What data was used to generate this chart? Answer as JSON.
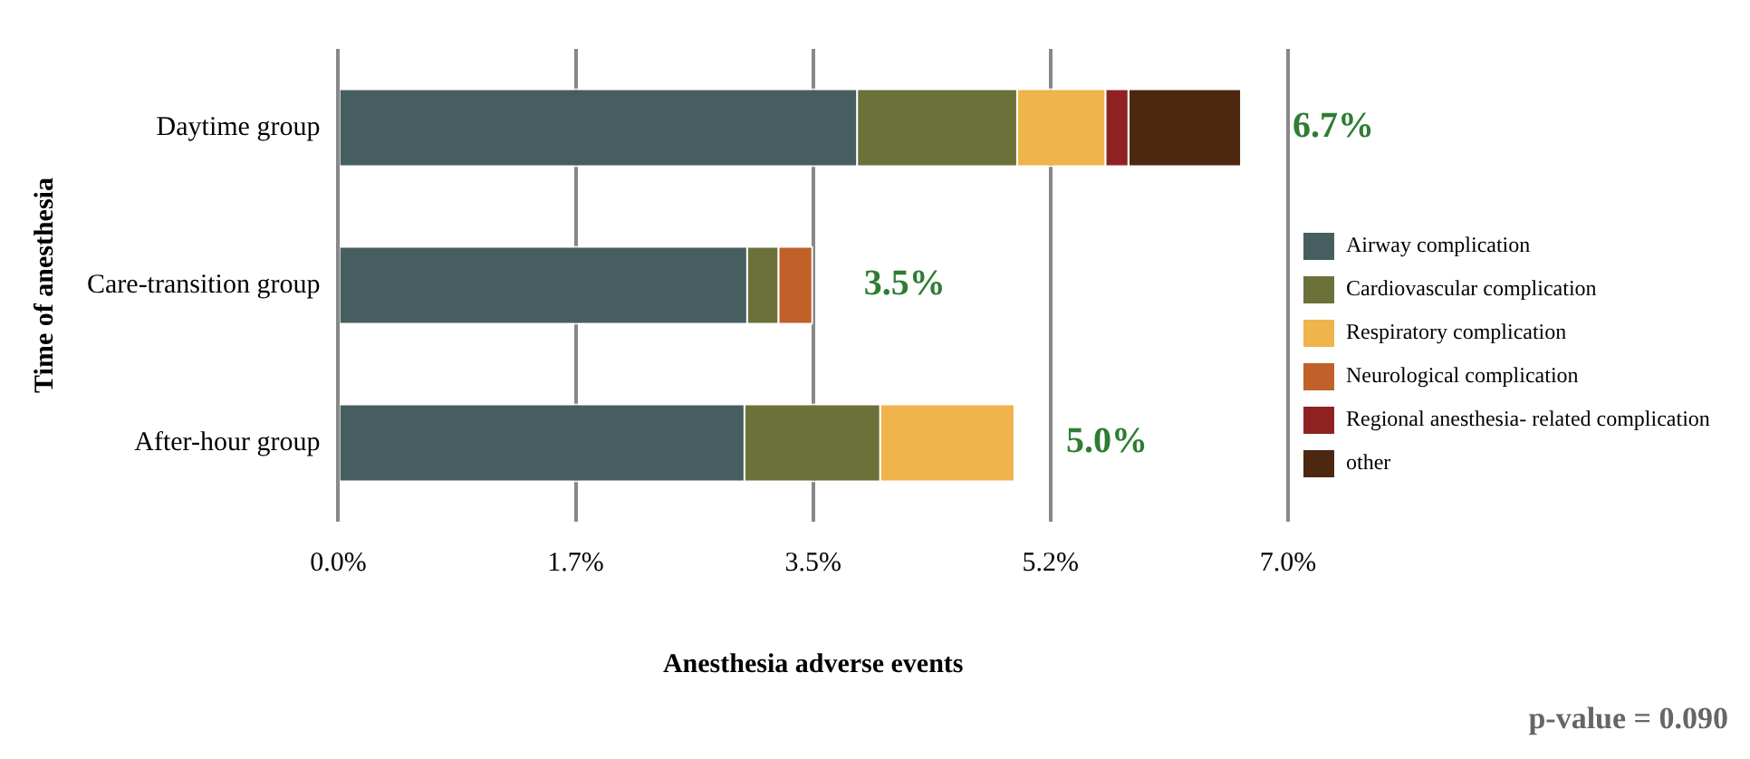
{
  "chart_data": {
    "type": "bar",
    "orientation": "horizontal",
    "stacked": true,
    "xlabel": "Anesthesia adverse events",
    "ylabel": "Time of anesthesia",
    "categories": [
      "Daytime group",
      "Care-transition group",
      "After-hour group"
    ],
    "series": [
      {
        "name": "Airway complication",
        "color": "#475e60",
        "values": [
          3.83,
          3.02,
          3.0
        ]
      },
      {
        "name": "Cardiovascular complication",
        "color": "#6b7139",
        "values": [
          1.18,
          0.23,
          1.0
        ]
      },
      {
        "name": "Respiratory complication",
        "color": "#efb44c",
        "values": [
          0.65,
          0,
          0.99
        ]
      },
      {
        "name": "Neurological complication",
        "color": "#c06129",
        "values": [
          0,
          0.25,
          0
        ]
      },
      {
        "name": "Regional anesthesia- related complication",
        "color": "#8f2220",
        "values": [
          0.17,
          0,
          0
        ]
      },
      {
        "name": "other",
        "color": "#4d2811",
        "values": [
          0.83,
          0,
          0
        ]
      }
    ],
    "totals": [
      "6.7%",
      "3.5%",
      "5.0%"
    ],
    "xlim": [
      0,
      7
    ],
    "xticks": [
      {
        "value": 0,
        "label": "0.0%"
      },
      {
        "value": 1.75,
        "label": "1.7%"
      },
      {
        "value": 3.5,
        "label": "3.5%"
      },
      {
        "value": 5.25,
        "label": "5.2%"
      },
      {
        "value": 7,
        "label": "7.0%"
      }
    ],
    "grid": "x",
    "legend": "right",
    "annotations": [
      "p-value = 0.090"
    ]
  }
}
